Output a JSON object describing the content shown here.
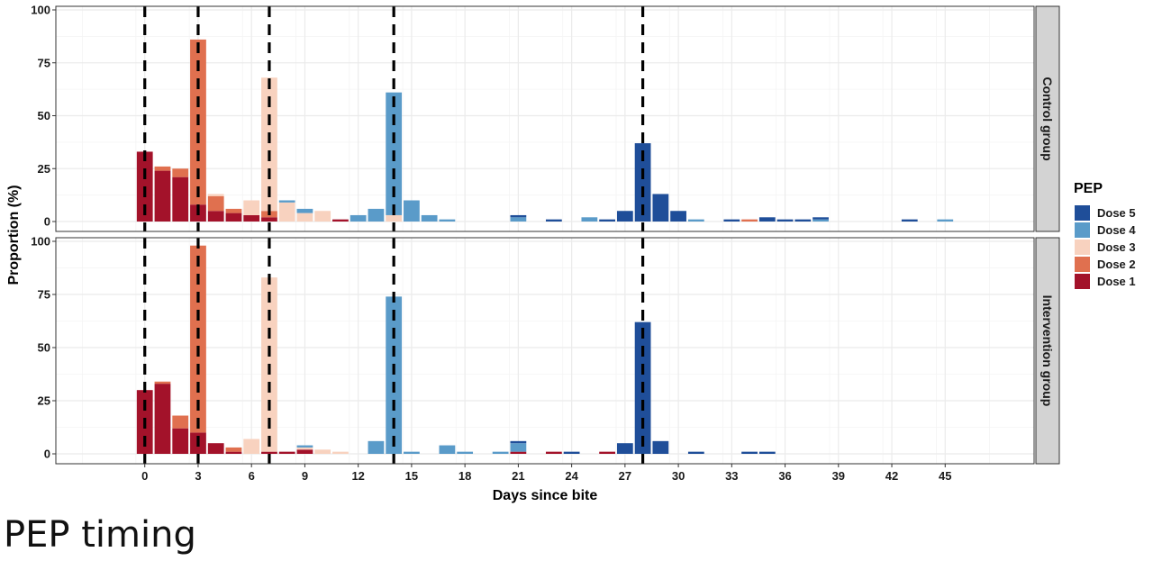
{
  "caption": "PEP timing",
  "colors": {
    "Dose 5": "#1f4e99",
    "Dose 4": "#5a9bc9",
    "Dose 3": "#f8d2bf",
    "Dose 2": "#e0704f",
    "Dose 1": "#a3122a",
    "vline": "#000000",
    "panel_border": "#333333",
    "grid": "#ebebeb",
    "strip_fill": "#d3d3d3"
  },
  "chart_data": {
    "type": "bar",
    "xlabel": "Days since bite",
    "ylabel": "Proportion (%)",
    "xlim": [
      -5,
      50
    ],
    "ylim": [
      0,
      100
    ],
    "x_ticks": [
      0,
      3,
      6,
      9,
      12,
      15,
      18,
      21,
      24,
      27,
      30,
      33,
      36,
      39,
      42,
      45
    ],
    "y_ticks": [
      0,
      25,
      50,
      75,
      100
    ],
    "reference_days": [
      0,
      3,
      7,
      14,
      28
    ],
    "legend": {
      "title": "PEP",
      "position": "right",
      "entries": [
        "Dose 5",
        "Dose 4",
        "Dose 3",
        "Dose 2",
        "Dose 1"
      ]
    },
    "panels": [
      {
        "name": "Control group",
        "bars": [
          {
            "day": 0,
            "segments": {
              "Dose 1": 33
            }
          },
          {
            "day": 1,
            "segments": {
              "Dose 1": 24,
              "Dose 2": 2
            }
          },
          {
            "day": 2,
            "segments": {
              "Dose 1": 21,
              "Dose 2": 4
            }
          },
          {
            "day": 3,
            "segments": {
              "Dose 1": 8,
              "Dose 2": 78
            }
          },
          {
            "day": 4,
            "segments": {
              "Dose 1": 5,
              "Dose 2": 7,
              "Dose 3": 1
            }
          },
          {
            "day": 5,
            "segments": {
              "Dose 1": 4,
              "Dose 2": 2
            }
          },
          {
            "day": 6,
            "segments": {
              "Dose 1": 3,
              "Dose 3": 7
            }
          },
          {
            "day": 7,
            "segments": {
              "Dose 1": 2,
              "Dose 2": 3,
              "Dose 3": 63
            }
          },
          {
            "day": 8,
            "segments": {
              "Dose 3": 9,
              "Dose 4": 1
            }
          },
          {
            "day": 9,
            "segments": {
              "Dose 3": 4,
              "Dose 4": 2
            }
          },
          {
            "day": 10,
            "segments": {
              "Dose 3": 5
            }
          },
          {
            "day": 11,
            "segments": {
              "Dose 1": 1
            }
          },
          {
            "day": 12,
            "segments": {
              "Dose 4": 3
            }
          },
          {
            "day": 13,
            "segments": {
              "Dose 4": 6
            }
          },
          {
            "day": 14,
            "segments": {
              "Dose 3": 3,
              "Dose 4": 58
            }
          },
          {
            "day": 15,
            "segments": {
              "Dose 4": 10
            }
          },
          {
            "day": 16,
            "segments": {
              "Dose 4": 3
            }
          },
          {
            "day": 17,
            "segments": {
              "Dose 4": 1
            }
          },
          {
            "day": 21,
            "segments": {
              "Dose 4": 2,
              "Dose 5": 1
            }
          },
          {
            "day": 23,
            "segments": {
              "Dose 5": 1
            }
          },
          {
            "day": 25,
            "segments": {
              "Dose 4": 2
            }
          },
          {
            "day": 26,
            "segments": {
              "Dose 5": 1
            }
          },
          {
            "day": 27,
            "segments": {
              "Dose 5": 5
            }
          },
          {
            "day": 28,
            "segments": {
              "Dose 5": 37
            }
          },
          {
            "day": 29,
            "segments": {
              "Dose 5": 13
            }
          },
          {
            "day": 30,
            "segments": {
              "Dose 5": 5
            }
          },
          {
            "day": 31,
            "segments": {
              "Dose 4": 1
            }
          },
          {
            "day": 33,
            "segments": {
              "Dose 5": 1
            }
          },
          {
            "day": 34,
            "segments": {
              "Dose 2": 1
            }
          },
          {
            "day": 35,
            "segments": {
              "Dose 5": 2
            }
          },
          {
            "day": 36,
            "segments": {
              "Dose 5": 1
            }
          },
          {
            "day": 37,
            "segments": {
              "Dose 5": 1
            }
          },
          {
            "day": 38,
            "segments": {
              "Dose 4": 1,
              "Dose 5": 1
            }
          },
          {
            "day": 43,
            "segments": {
              "Dose 5": 1
            }
          },
          {
            "day": 45,
            "segments": {
              "Dose 4": 1
            }
          }
        ]
      },
      {
        "name": "Intervention group",
        "bars": [
          {
            "day": 0,
            "segments": {
              "Dose 1": 30
            }
          },
          {
            "day": 1,
            "segments": {
              "Dose 1": 33,
              "Dose 2": 1
            }
          },
          {
            "day": 2,
            "segments": {
              "Dose 1": 12,
              "Dose 2": 6
            }
          },
          {
            "day": 3,
            "segments": {
              "Dose 1": 10,
              "Dose 2": 88
            }
          },
          {
            "day": 4,
            "segments": {
              "Dose 1": 5
            }
          },
          {
            "day": 5,
            "segments": {
              "Dose 1": 1,
              "Dose 2": 2
            }
          },
          {
            "day": 6,
            "segments": {
              "Dose 3": 7
            }
          },
          {
            "day": 7,
            "segments": {
              "Dose 1": 1,
              "Dose 3": 82
            }
          },
          {
            "day": 8,
            "segments": {
              "Dose 1": 1
            }
          },
          {
            "day": 9,
            "segments": {
              "Dose 1": 2,
              "Dose 3": 1,
              "Dose 4": 1
            }
          },
          {
            "day": 10,
            "segments": {
              "Dose 3": 2
            }
          },
          {
            "day": 11,
            "segments": {
              "Dose 3": 1
            }
          },
          {
            "day": 13,
            "segments": {
              "Dose 4": 6
            }
          },
          {
            "day": 14,
            "segments": {
              "Dose 4": 74
            }
          },
          {
            "day": 15,
            "segments": {
              "Dose 4": 1
            }
          },
          {
            "day": 17,
            "segments": {
              "Dose 4": 4
            }
          },
          {
            "day": 18,
            "segments": {
              "Dose 4": 1
            }
          },
          {
            "day": 20,
            "segments": {
              "Dose 4": 1
            }
          },
          {
            "day": 21,
            "segments": {
              "Dose 1": 1,
              "Dose 4": 4,
              "Dose 5": 1
            }
          },
          {
            "day": 23,
            "segments": {
              "Dose 1": 1
            }
          },
          {
            "day": 24,
            "segments": {
              "Dose 5": 1
            }
          },
          {
            "day": 26,
            "segments": {
              "Dose 1": 1
            }
          },
          {
            "day": 27,
            "segments": {
              "Dose 5": 5
            }
          },
          {
            "day": 28,
            "segments": {
              "Dose 5": 62
            }
          },
          {
            "day": 29,
            "segments": {
              "Dose 5": 6
            }
          },
          {
            "day": 31,
            "segments": {
              "Dose 5": 1
            }
          },
          {
            "day": 34,
            "segments": {
              "Dose 5": 1
            }
          },
          {
            "day": 35,
            "segments": {
              "Dose 5": 1
            }
          }
        ]
      }
    ]
  }
}
